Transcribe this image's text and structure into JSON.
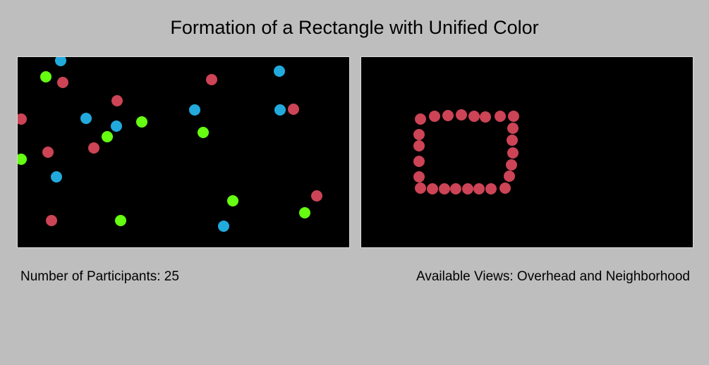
{
  "title": "Formation of a Rectangle with Unified Color",
  "captions": {
    "participants": "Number of Participants: 25",
    "views": "Available Views: Overhead and Neighborhood"
  },
  "colors": {
    "red": "#cc4455",
    "blue": "#22aadd",
    "green": "#66ff11",
    "panel_background": "#000000",
    "page_background": "#bebebe"
  },
  "views": {
    "overhead": {
      "dot_color_counts": {
        "red": 10,
        "blue": 8,
        "green": 7
      }
    },
    "neighborhood": {
      "dot_color_counts": {
        "red": 25
      },
      "formation": "rectangle"
    }
  }
}
